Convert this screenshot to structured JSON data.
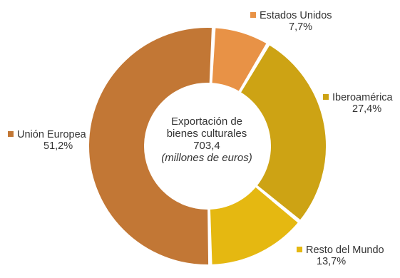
{
  "chart_data": {
    "type": "pie",
    "subtype": "donut",
    "center_text": {
      "line1": "Exportación de",
      "line2": "bienes culturales",
      "value": "703,4",
      "unit": "(millones de euros)"
    },
    "slices": [
      {
        "label": "Estados Unidos",
        "value": 7.7,
        "value_label": "7,7%",
        "color": "#E89246"
      },
      {
        "label": "Iberoamérica",
        "value": 27.4,
        "value_label": "27,4%",
        "color": "#CDA314"
      },
      {
        "label": "Resto del Mundo",
        "value": 13.7,
        "value_label": "13,7%",
        "color": "#E5B811"
      },
      {
        "label": "Unión Europea",
        "value": 51.2,
        "value_label": "51,2%",
        "color": "#C27735"
      }
    ]
  }
}
